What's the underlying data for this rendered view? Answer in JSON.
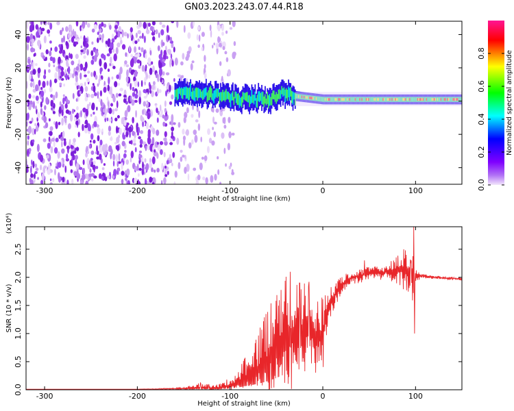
{
  "title": "GN03.2023.243.07.44.R18",
  "chart_data": [
    {
      "type": "heatmap",
      "xlabel": "Height of straight line (km)",
      "ylabel": "Frequency (Hz)",
      "xlim": [
        -320,
        150
      ],
      "ylim": [
        -50,
        48
      ],
      "xticks": [
        -300,
        -200,
        -100,
        0,
        100
      ],
      "yticks": [
        40,
        20,
        0,
        -20,
        -40
      ],
      "colorbar": {
        "label": "Normalized spectral amplitude",
        "range": [
          0,
          1
        ],
        "ticks": [
          "0.0",
          "0.2",
          "0.4",
          "0.6",
          "0.8"
        ],
        "colors": [
          "#f2e6fb",
          "#7f00ff",
          "#0000ff",
          "#00ffff",
          "#00ff00",
          "#ffff00",
          "#ff0000",
          "#ff1493"
        ]
      },
      "features": {
        "noise_region_km": [
          -320,
          -125
        ],
        "signal_band_center_hz": [
          [
            -160,
            5
          ],
          [
            -140,
            5
          ],
          [
            -120,
            4
          ],
          [
            -100,
            2
          ],
          [
            -80,
            1
          ],
          [
            -60,
            1
          ],
          [
            -45,
            5
          ],
          [
            -30,
            3
          ],
          [
            0,
            1
          ],
          [
            50,
            1
          ],
          [
            100,
            1
          ],
          [
            150,
            1
          ]
        ]
      }
    },
    {
      "type": "line",
      "xlabel": "Height of straight line (km)",
      "ylabel": "SNR (10 * v/v)",
      "y_multiplier": "(x10⁴)",
      "xlim": [
        -320,
        150
      ],
      "ylim": [
        0,
        2.9
      ],
      "xticks": [
        -300,
        -200,
        -100,
        0,
        100
      ],
      "yticks": [
        "0.0",
        "0.5",
        "1.0",
        "1.5",
        "2.0",
        "2.5"
      ],
      "series": [
        {
          "color": "#e8262a",
          "x": [
            -320,
            -260,
            -200,
            -150,
            -130,
            -120,
            -110,
            -100,
            -90,
            -80,
            -70,
            -60,
            -50,
            -40,
            -30,
            -20,
            -10,
            0,
            5,
            10,
            20,
            30,
            40,
            50,
            60,
            70,
            80,
            90,
            95,
            100,
            105,
            110,
            120,
            130,
            140,
            150
          ],
          "y": [
            0.01,
            0.01,
            0.01,
            0.02,
            0.04,
            0.02,
            0.03,
            0.08,
            0.15,
            0.25,
            0.35,
            0.5,
            0.7,
            0.95,
            1.0,
            1.05,
            0.95,
            1.0,
            1.4,
            1.6,
            1.85,
            1.98,
            2.03,
            2.08,
            2.07,
            2.1,
            2.12,
            2.15,
            2.05,
            2.0,
            2.03,
            2.02,
            2.0,
            1.99,
            1.98,
            1.97
          ],
          "spread": [
            0,
            0,
            0,
            0.02,
            0.1,
            0.05,
            0.08,
            0.15,
            0.3,
            0.5,
            0.7,
            0.9,
            1.1,
            1.1,
            1.0,
            0.9,
            0.8,
            0.7,
            0.5,
            0.3,
            0.2,
            0.12,
            0.15,
            0.12,
            0.12,
            0.15,
            0.25,
            0.4,
            0.6,
            0.15,
            0.05,
            0.04,
            0.03,
            0.03,
            0.03,
            0.03
          ],
          "spikes": [
            [
              -123,
              0.1
            ],
            [
              -132,
              0.13
            ],
            [
              -35,
              2.1
            ],
            [
              -25,
              1.9
            ],
            [
              -15,
              1.92
            ],
            [
              45,
              2.3
            ],
            [
              90,
              2.4
            ],
            [
              98,
              2.9
            ],
            [
              99,
              1.0
            ],
            [
              95,
              2.25
            ]
          ]
        }
      ]
    }
  ]
}
